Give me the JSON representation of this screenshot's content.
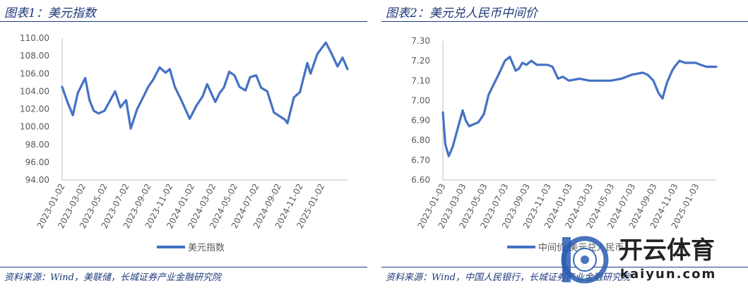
{
  "left": {
    "title": "图表1：美元指数",
    "source": "资料来源：Wind，美联储，长城证券产业金融研究院",
    "legend": "美元指数",
    "color": "#4472c4"
  },
  "right": {
    "title": "图表2：美元兑人民币中间价",
    "source": "资料来源：Wind，中国人民银行，长城证券产业金融研究院",
    "legend": "中间价:美元兑人民币",
    "color": "#4472c4"
  },
  "watermark": {
    "text": "开云体育",
    "url": "kaiyun.com"
  },
  "chart_data": [
    {
      "type": "line",
      "ylim": [
        94,
        110
      ],
      "yticks": [
        "94.00",
        "96.00",
        "98.00",
        "100.00",
        "102.00",
        "104.00",
        "106.00",
        "108.00",
        "110.00"
      ],
      "xticks": [
        "2023-01-02",
        "2023-03-02",
        "2023-05-02",
        "2023-07-02",
        "2023-09-02",
        "2023-11-02",
        "2024-01-02",
        "2024-03-02",
        "2024-05-02",
        "2024-07-02",
        "2024-09-02",
        "2024-11-02",
        "2025-01-02"
      ],
      "series": [
        {
          "name": "美元指数",
          "x": [
            "2023-01-02",
            "2023-01-15",
            "2023-02-01",
            "2023-02-15",
            "2023-03-08",
            "2023-03-20",
            "2023-04-01",
            "2023-04-14",
            "2023-05-01",
            "2023-05-31",
            "2023-06-15",
            "2023-07-01",
            "2023-07-14",
            "2023-08-01",
            "2023-08-20",
            "2023-09-01",
            "2023-09-15",
            "2023-10-03",
            "2023-10-20",
            "2023-11-01",
            "2023-11-15",
            "2023-12-01",
            "2023-12-27",
            "2024-01-15",
            "2024-02-01",
            "2024-02-14",
            "2024-03-08",
            "2024-03-20",
            "2024-04-01",
            "2024-04-16",
            "2024-05-01",
            "2024-05-15",
            "2024-06-01",
            "2024-06-14",
            "2024-07-01",
            "2024-07-15",
            "2024-08-01",
            "2024-08-20",
            "2024-09-01",
            "2024-09-20",
            "2024-09-27",
            "2024-10-15",
            "2024-11-01",
            "2024-11-22",
            "2024-12-01",
            "2024-12-20",
            "2025-01-13",
            "2025-01-31",
            "2025-02-15",
            "2025-03-01",
            "2025-03-15"
          ],
          "values": [
            104.5,
            103.0,
            101.3,
            103.8,
            105.5,
            103.0,
            101.8,
            101.5,
            101.8,
            104.0,
            102.2,
            103.0,
            99.8,
            102.0,
            103.5,
            104.5,
            105.3,
            106.7,
            106.1,
            106.5,
            104.5,
            103.2,
            100.9,
            102.4,
            103.4,
            104.8,
            102.8,
            103.8,
            104.4,
            106.2,
            105.8,
            104.5,
            104.1,
            105.6,
            105.8,
            104.4,
            104.0,
            101.6,
            101.3,
            100.8,
            100.4,
            103.3,
            103.9,
            107.2,
            106.0,
            108.2,
            109.5,
            108.1,
            106.8,
            107.8,
            106.5
          ]
        }
      ]
    },
    {
      "type": "line",
      "ylim": [
        6.6,
        7.3
      ],
      "yticks": [
        "6.60",
        "6.70",
        "6.80",
        "6.90",
        "7.00",
        "7.10",
        "7.20",
        "7.30"
      ],
      "xticks": [
        "2023-01-03",
        "2023-03-03",
        "2023-05-03",
        "2023-07-03",
        "2023-09-03",
        "2023-11-03",
        "2024-01-03",
        "2024-03-03",
        "2024-05-03",
        "2024-07-03",
        "2024-09-03",
        "2024-11-03",
        "2025-01-03"
      ],
      "series": [
        {
          "name": "中间价:美元兑人民币",
          "x": [
            "2023-01-03",
            "2023-01-10",
            "2023-01-20",
            "2023-02-01",
            "2023-02-15",
            "2023-03-01",
            "2023-03-10",
            "2023-03-20",
            "2023-04-01",
            "2023-04-15",
            "2023-05-01",
            "2023-05-15",
            "2023-06-01",
            "2023-06-15",
            "2023-07-01",
            "2023-07-15",
            "2023-08-01",
            "2023-08-10",
            "2023-08-20",
            "2023-09-01",
            "2023-09-15",
            "2023-10-01",
            "2023-10-15",
            "2023-11-01",
            "2023-11-15",
            "2023-12-01",
            "2023-12-15",
            "2024-01-01",
            "2024-02-01",
            "2024-03-01",
            "2024-04-01",
            "2024-05-01",
            "2024-06-01",
            "2024-07-01",
            "2024-08-01",
            "2024-08-15",
            "2024-09-01",
            "2024-09-15",
            "2024-09-27",
            "2024-10-10",
            "2024-10-25",
            "2024-11-01",
            "2024-11-15",
            "2024-12-01",
            "2024-12-15",
            "2025-01-01",
            "2025-01-15",
            "2025-02-01",
            "2025-02-15",
            "2025-03-01"
          ],
          "values": [
            6.94,
            6.78,
            6.72,
            6.77,
            6.86,
            6.95,
            6.9,
            6.87,
            6.88,
            6.89,
            6.93,
            7.03,
            7.09,
            7.14,
            7.2,
            7.22,
            7.15,
            7.16,
            7.19,
            7.18,
            7.2,
            7.18,
            7.18,
            7.18,
            7.17,
            7.11,
            7.12,
            7.1,
            7.11,
            7.1,
            7.1,
            7.1,
            7.11,
            7.13,
            7.14,
            7.13,
            7.1,
            7.04,
            7.01,
            7.09,
            7.15,
            7.17,
            7.2,
            7.19,
            7.19,
            7.19,
            7.18,
            7.17,
            7.17,
            7.17
          ]
        }
      ]
    }
  ]
}
